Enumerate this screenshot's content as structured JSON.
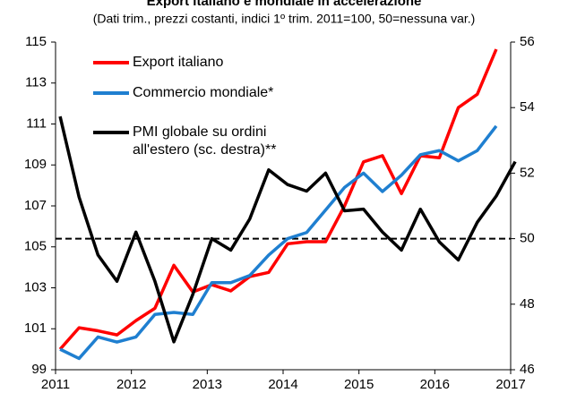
{
  "chart_data": {
    "type": "line",
    "title": "Export italiano e mondiale in accelerazione",
    "subtitle": "(Dati trim., prezzi costanti, indici 1º trim. 2011=100, 50=nessuna var.)",
    "x": [
      2011.06,
      2011.31,
      2011.56,
      2011.81,
      2012.06,
      2012.31,
      2012.56,
      2012.81,
      2013.06,
      2013.31,
      2013.56,
      2013.81,
      2014.06,
      2014.31,
      2014.56,
      2014.81,
      2015.06,
      2015.31,
      2015.56,
      2015.81,
      2016.06,
      2016.31,
      2016.56,
      2016.81,
      2017.06
    ],
    "series": [
      {
        "name": "Export italiano",
        "color": "#ff0000",
        "values": [
          100.0,
          101.05,
          100.9,
          100.7,
          101.4,
          102.0,
          104.1,
          102.8,
          103.15,
          102.85,
          103.55,
          103.75,
          105.15,
          105.25,
          105.25,
          107.0,
          109.15,
          109.45,
          107.6,
          109.45,
          109.35,
          111.8,
          112.45,
          114.65,
          null
        ]
      },
      {
        "name": "Commercio mondiale*",
        "color": "#1f7fd0",
        "values": [
          100.0,
          99.55,
          100.6,
          100.35,
          100.6,
          101.7,
          101.8,
          101.7,
          103.25,
          103.25,
          103.6,
          104.6,
          105.4,
          105.7,
          106.8,
          107.9,
          108.6,
          107.7,
          108.5,
          109.5,
          109.7,
          109.2,
          109.7,
          110.9,
          null
        ]
      },
      {
        "name": "PMI globale su ordini all'estero (sc. destra)**",
        "color": "#000000",
        "axis": "y2",
        "values": [
          53.73,
          51.27,
          49.5,
          48.7,
          50.2,
          48.7,
          46.85,
          48.3,
          50.0,
          49.65,
          50.6,
          52.1,
          51.65,
          51.45,
          52.0,
          50.85,
          50.9,
          50.2,
          49.65,
          50.9,
          49.9,
          49.35,
          50.5,
          51.3,
          52.35
        ]
      }
    ],
    "xlim": [
      2011,
      2017
    ],
    "xticks": [
      2011,
      2012,
      2013,
      2014,
      2015,
      2016,
      2017
    ],
    "ylim": [
      99,
      115
    ],
    "yticks": [
      99,
      101,
      103,
      105,
      107,
      109,
      111,
      113,
      115
    ],
    "y2lim": [
      46,
      56
    ],
    "y2ticks": [
      46,
      48,
      50,
      52,
      54,
      56
    ],
    "y2_reference_line": 50,
    "legend": "top-left"
  }
}
